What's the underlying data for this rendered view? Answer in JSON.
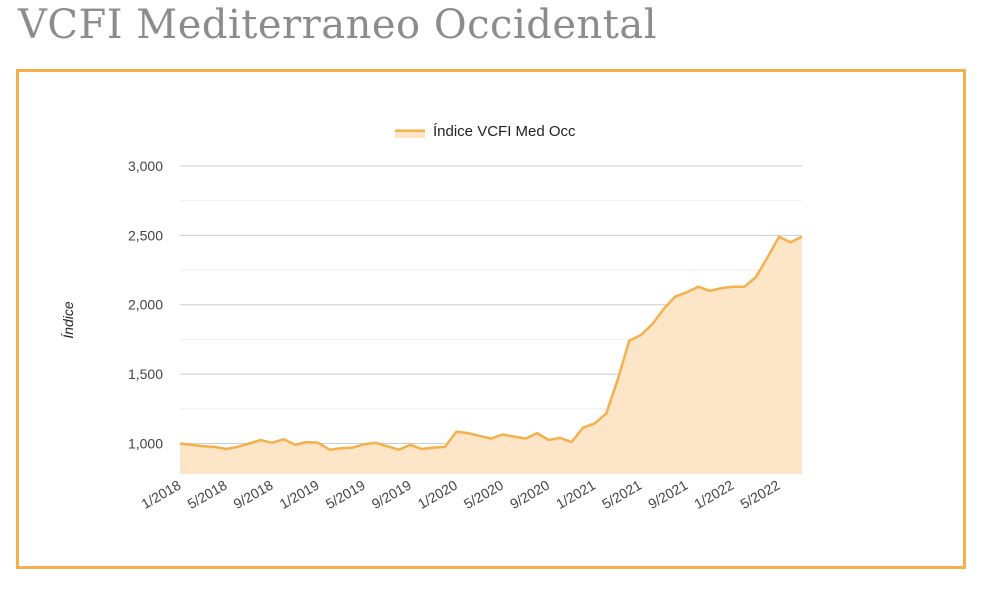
{
  "page": {
    "title": "VCFI Mediterraneo Occidental"
  },
  "colors": {
    "frame": "#f5b04e",
    "line": "#f5b04e",
    "fill": "#fde5c8",
    "grid": "#cccccc",
    "grid_minor": "#eeeeee"
  },
  "chart_data": {
    "type": "area",
    "title": "",
    "ylabel": "Índice",
    "xlabel": "",
    "ylim": [
      780,
      3000
    ],
    "yticks": [
      1000,
      1500,
      2000,
      2500,
      3000
    ],
    "ytick_labels": [
      "1,000",
      "1,500",
      "2,000",
      "2,500",
      "3,000"
    ],
    "xtick_labels": [
      "1/2018",
      "5/2018",
      "9/2018",
      "1/2019",
      "5/2019",
      "9/2019",
      "1/2020",
      "5/2020",
      "9/2020",
      "1/2021",
      "5/2021",
      "9/2021",
      "1/2022",
      "5/2022"
    ],
    "legend": {
      "position": "top-center"
    },
    "grid": true,
    "series": [
      {
        "name": "Índice VCFI Med Occ",
        "x": [
          "1/2018",
          "2/2018",
          "3/2018",
          "4/2018",
          "5/2018",
          "6/2018",
          "7/2018",
          "8/2018",
          "9/2018",
          "10/2018",
          "11/2018",
          "12/2018",
          "1/2019",
          "2/2019",
          "3/2019",
          "4/2019",
          "5/2019",
          "6/2019",
          "7/2019",
          "8/2019",
          "9/2019",
          "10/2019",
          "11/2019",
          "12/2019",
          "1/2020",
          "2/2020",
          "3/2020",
          "4/2020",
          "5/2020",
          "6/2020",
          "7/2020",
          "8/2020",
          "9/2020",
          "10/2020",
          "11/2020",
          "12/2020",
          "1/2021",
          "2/2021",
          "3/2021",
          "4/2021",
          "5/2021",
          "6/2021",
          "7/2021",
          "8/2021",
          "9/2021",
          "10/2021",
          "11/2021",
          "12/2021",
          "1/2022",
          "2/2022",
          "3/2022",
          "4/2022",
          "5/2022",
          "6/2022",
          "7/2022"
        ],
        "values": [
          1000,
          990,
          980,
          975,
          960,
          975,
          1000,
          1025,
          1005,
          1030,
          990,
          1010,
          1005,
          955,
          965,
          970,
          995,
          1005,
          980,
          955,
          990,
          960,
          970,
          975,
          1085,
          1075,
          1055,
          1035,
          1065,
          1050,
          1035,
          1075,
          1025,
          1040,
          1010,
          1115,
          1145,
          1215,
          1460,
          1740,
          1780,
          1860,
          1970,
          2060,
          2090,
          2130,
          2100,
          2120,
          2130,
          2130,
          2200,
          2340,
          2490,
          2450,
          2490
        ]
      }
    ]
  }
}
